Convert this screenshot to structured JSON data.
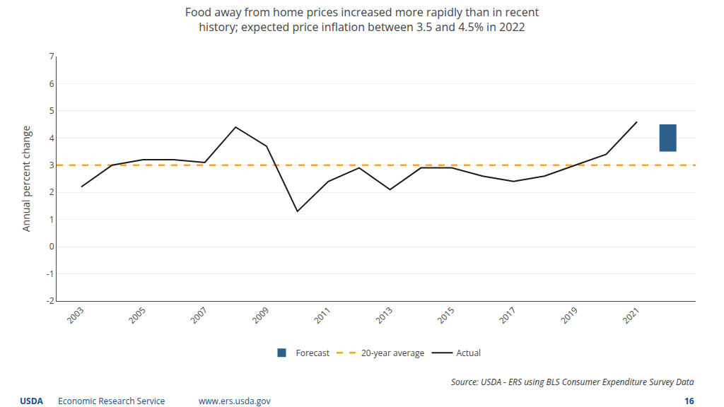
{
  "chart_data": {
    "type": "line",
    "title": "Food away from home prices increased more rapidly than in recent\nhistory; expected price inflation between 3.5 and 4.5% in 2022",
    "ylabel": "Annual percent change",
    "series": [
      {
        "name": "Forecast",
        "type": "bar",
        "color": "#2C5F8A",
        "x": [
          2022
        ],
        "low": [
          3.5
        ],
        "high": [
          4.5
        ]
      },
      {
        "name": "20-year average",
        "type": "line",
        "line_style": "dashed",
        "color": "#F5A623",
        "values": [
          3.0
        ]
      },
      {
        "name": "Actual",
        "type": "line",
        "color": "#1a1a1a",
        "x": [
          2003,
          2004,
          2005,
          2006,
          2007,
          2008,
          2009,
          2010,
          2011,
          2012,
          2013,
          2014,
          2015,
          2016,
          2017,
          2018,
          2019,
          2020,
          2021
        ],
        "values": [
          2.2,
          3.0,
          3.2,
          3.2,
          3.1,
          4.4,
          3.7,
          1.3,
          2.4,
          2.9,
          2.1,
          2.9,
          2.9,
          2.6,
          2.4,
          2.6,
          3.0,
          3.4,
          4.6
        ]
      }
    ],
    "xlim": [
      2002.2,
      2022.9
    ],
    "xticks": [
      2003,
      2005,
      2007,
      2009,
      2011,
      2013,
      2015,
      2017,
      2019,
      2021
    ],
    "ylim": [
      -2,
      7
    ],
    "yticks": [
      -2,
      -1,
      0,
      1,
      2,
      3,
      4,
      5,
      6,
      7
    ],
    "grid": "y",
    "legend": "bottom",
    "annotations": [
      "Source: USDA - ERS using BLS Consumer Expenditure Survey Data",
      "USDA",
      "Economic Research Service",
      "www.ers.usda.gov",
      "16"
    ]
  }
}
